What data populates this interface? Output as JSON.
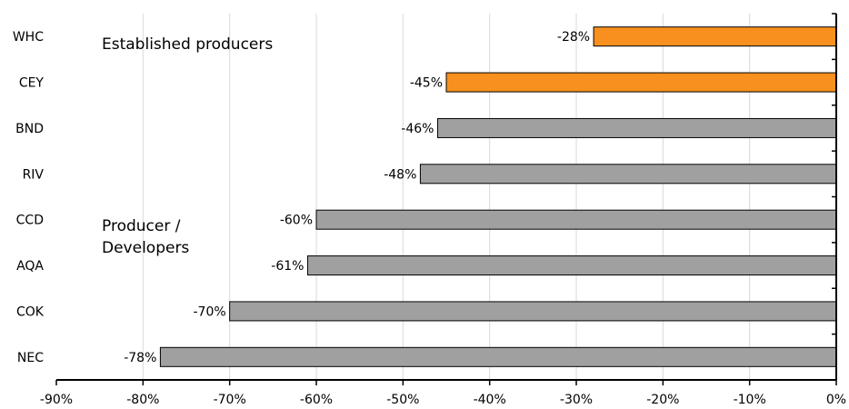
{
  "chart_data": {
    "type": "bar",
    "orientation": "horizontal",
    "categories": [
      "WHC",
      "CEY",
      "BND",
      "RIV",
      "CCD",
      "AQA",
      "COK",
      "NEC"
    ],
    "values": [
      -28,
      -45,
      -46,
      -48,
      -60,
      -61,
      -70,
      -78
    ],
    "data_labels": [
      "-28%",
      "-45%",
      "-46%",
      "-48%",
      "-60%",
      "-61%",
      "-70%",
      "-78%"
    ],
    "groups": [
      "established",
      "established",
      "producer",
      "producer",
      "producer",
      "producer",
      "producer",
      "producer"
    ],
    "group_colors": {
      "established": "#F7901E",
      "producer": "#A0A0A0"
    },
    "xlim": [
      -90,
      0
    ],
    "x_ticks": [
      -90,
      -80,
      -70,
      -60,
      -50,
      -40,
      -30,
      -20,
      -10,
      0
    ],
    "x_tick_labels": [
      "-90%",
      "-80%",
      "-70%",
      "-60%",
      "-50%",
      "-40%",
      "-30%",
      "-20%",
      "-10%",
      "0%"
    ],
    "grid": "vertical",
    "title": "",
    "xlabel": "",
    "ylabel": "",
    "annotations": [
      {
        "text": "Established producers"
      },
      {
        "text": "Producer /"
      },
      {
        "text": "Developers"
      }
    ]
  }
}
